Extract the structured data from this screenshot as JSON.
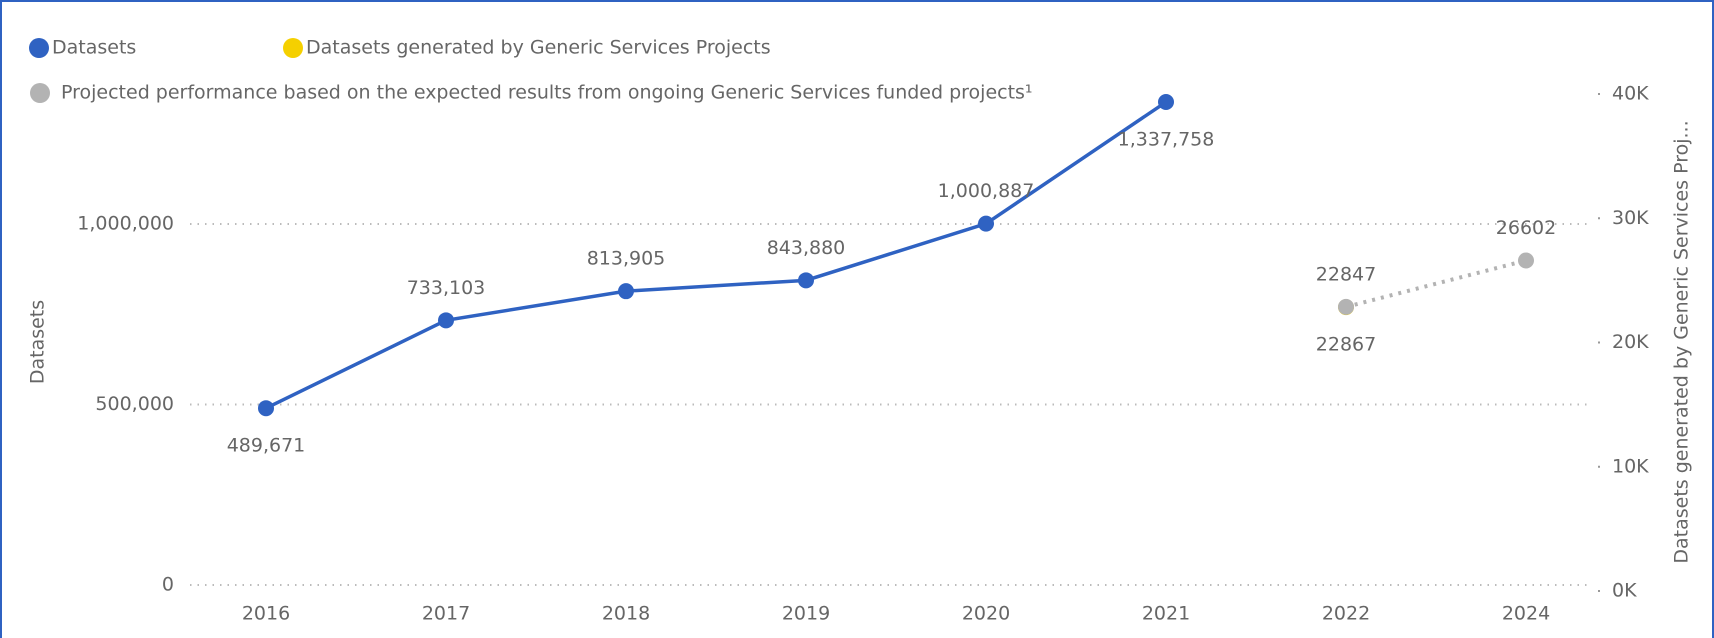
{
  "chart_data": {
    "type": "line",
    "categories": [
      "2016",
      "2017",
      "2018",
      "2019",
      "2020",
      "2021",
      "2022",
      "2024"
    ],
    "ylabel": "Datasets",
    "y2label": "Datasets generated by Generic Services Proj...",
    "ylim": [
      0,
      1360000
    ],
    "yticks": [
      0,
      {
        "value": 500000,
        "label": "500,000"
      },
      {
        "value": 1000000,
        "label": "1,000,000"
      }
    ],
    "y2lim": [
      0,
      40000
    ],
    "y2ticks": [
      {
        "value": 0,
        "label": "0K"
      },
      {
        "value": 10000,
        "label": "10K"
      },
      {
        "value": 20000,
        "label": "20K"
      },
      {
        "value": 30000,
        "label": "30K"
      },
      {
        "value": 40000,
        "label": "40K"
      }
    ],
    "grid": true,
    "series": [
      {
        "name": "Datasets",
        "color": "#2f62c2",
        "dashed": false,
        "values": [
          489671,
          733103,
          813905,
          843880,
          1000887,
          1337758,
          null,
          null
        ],
        "value_labels": [
          "489,671",
          "733,103",
          "813,905",
          "843,880",
          "1,000,887",
          "1,337,758",
          null,
          null
        ]
      },
      {
        "name": "Datasets generated by Generic Services Projects",
        "color": "#f5d000",
        "axis": "y2",
        "dashed": false,
        "values": [
          null,
          null,
          null,
          null,
          null,
          null,
          22847,
          null
        ]
      },
      {
        "name": "Projected performance based on the expected results from ongoing Generic Services funded projects¹",
        "color": "#b3b3b3",
        "axis": "y2",
        "dashed": true,
        "values": [
          null,
          null,
          null,
          null,
          null,
          null,
          22867,
          26602
        ]
      }
    ]
  }
}
